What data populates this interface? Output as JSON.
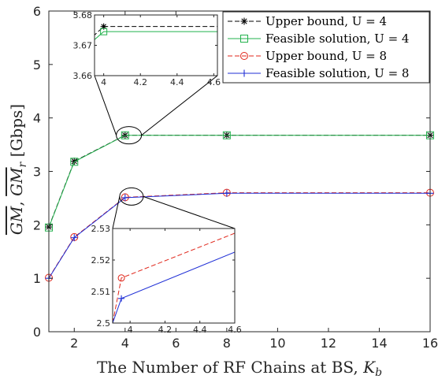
{
  "chart_data": {
    "type": "line",
    "xlabel_main": "The Number of RF Chains at BS, ",
    "xlabel_symbol": "K",
    "xlabel_sub": "b",
    "ylabel_parts": [
      "GM",
      ", ",
      "GM",
      "r",
      " [Gbps]"
    ],
    "xlim": [
      1,
      16
    ],
    "ylim": [
      0,
      6
    ],
    "x_ticks": [
      "2",
      "4",
      "6",
      "8",
      "10",
      "12",
      "14",
      "16"
    ],
    "y_ticks": [
      "0",
      "1",
      "2",
      "3",
      "4",
      "5",
      "6"
    ],
    "legend_position": "top-right",
    "series": [
      {
        "name": "Upper bound, U = 4",
        "color": "#000000",
        "dash": "6,3",
        "marker": "asterisk",
        "x": [
          1,
          2,
          4,
          8,
          16
        ],
        "y": [
          1.96,
          3.19,
          3.676,
          3.676,
          3.676
        ]
      },
      {
        "name": "Feasible solution, U = 4",
        "color": "#22b14c",
        "dash": "",
        "marker": "square",
        "x": [
          1,
          2,
          4,
          8,
          16
        ],
        "y": [
          1.95,
          3.18,
          3.675,
          3.675,
          3.675
        ]
      },
      {
        "name": "Upper bound, U = 8",
        "color": "#e0261a",
        "dash": "6,3",
        "marker": "circle",
        "x": [
          1,
          2,
          4,
          8,
          16
        ],
        "y": [
          1.01,
          1.77,
          2.515,
          2.6,
          2.6
        ]
      },
      {
        "name": "Feasible solution, U = 8",
        "color": "#1f2fd6",
        "dash": "",
        "marker": "plus",
        "x": [
          1,
          2,
          4,
          8,
          16
        ],
        "y": [
          1.0,
          1.76,
          2.508,
          2.59,
          2.59
        ]
      }
    ],
    "insets": [
      {
        "xlim": [
          3.95,
          4.62
        ],
        "ylim": [
          3.66,
          3.68
        ],
        "x_ticks": [
          "4",
          "4.2",
          "4.4",
          "4.6"
        ],
        "y_ticks": [
          "3.66",
          "3.67",
          "3.68"
        ],
        "series_indices": [
          0,
          1
        ],
        "series_data": [
          {
            "x": [
              3.8,
              4.0,
              4.62
            ],
            "y": [
              3.665,
              3.6762,
              3.6762
            ]
          },
          {
            "x": [
              3.8,
              4.0,
              4.62
            ],
            "y": [
              3.664,
              3.6745,
              3.6745
            ]
          }
        ]
      },
      {
        "xlim": [
          3.9,
          4.6
        ],
        "ylim": [
          2.5,
          2.53
        ],
        "x_ticks": [
          "4",
          "4.2",
          "4.4",
          "4.6"
        ],
        "y_ticks": [
          "2.5",
          "2.51",
          "2.52",
          "2.53"
        ],
        "series_indices": [
          2,
          3
        ],
        "series_data": [
          {
            "x": [
              3.9,
              3.95,
              4.6
            ],
            "y": [
              2.5,
              2.5143,
              2.5285
            ]
          },
          {
            "x": [
              3.9,
              3.95,
              4.6
            ],
            "y": [
              2.5,
              2.5078,
              2.5225
            ]
          }
        ]
      }
    ]
  }
}
